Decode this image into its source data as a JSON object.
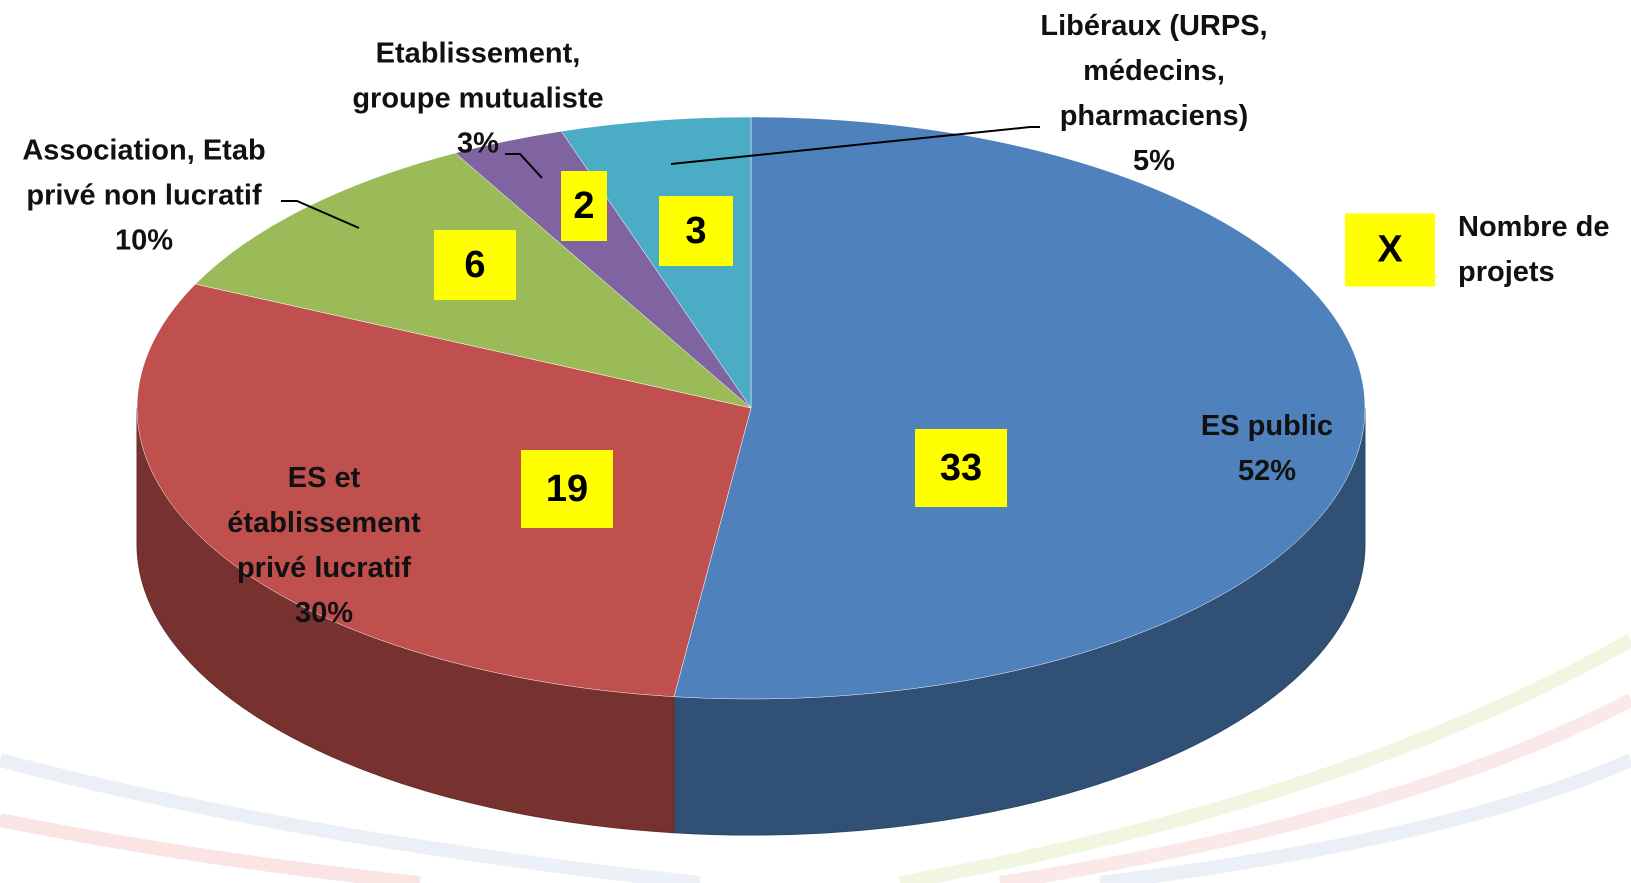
{
  "chart_data": {
    "type": "pie",
    "categories": [
      "ES public",
      "ES et établissement privé lucratif",
      "Association, Etab privé non lucratif",
      "Etablissement, groupe mutualiste",
      "Libéraux (URPS, médecins, pharmaciens)"
    ],
    "values": [
      52,
      30,
      10,
      3,
      5
    ],
    "value_labels": [
      "52%",
      "30%",
      "10%",
      "3%",
      "5%"
    ],
    "counts": [
      33,
      19,
      6,
      2,
      3
    ],
    "colors": [
      "#4f81bd",
      "#c0504d",
      "#9bbb59",
      "#8064a2",
      "#4bacc6"
    ],
    "count_legend": {
      "symbol": "X",
      "label": "Nombre de projets"
    }
  }
}
